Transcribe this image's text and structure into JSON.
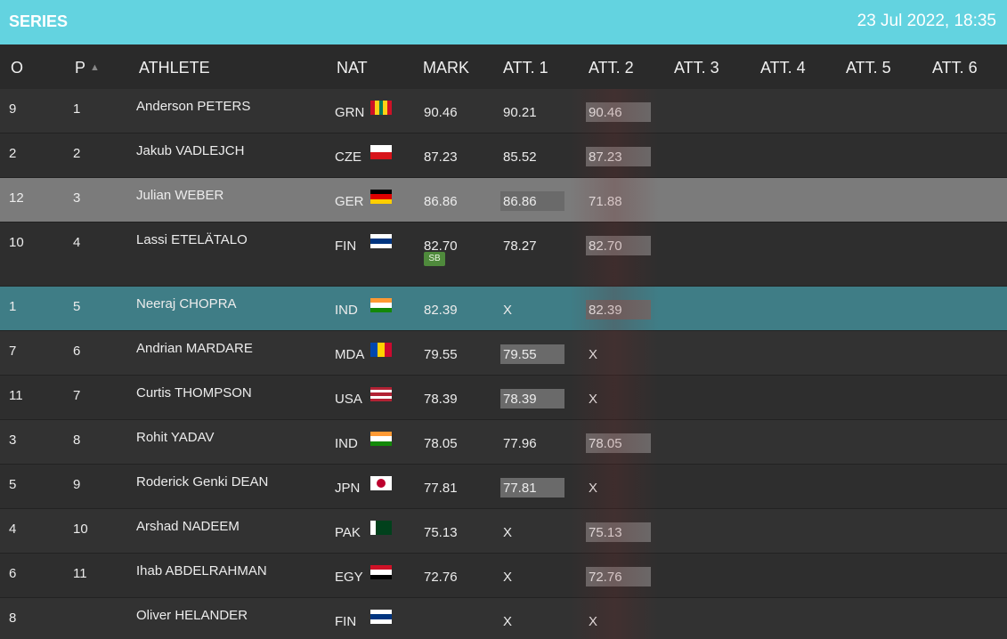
{
  "header": {
    "title": "SERIES",
    "datetime": "23 Jul 2022, 18:35"
  },
  "table": {
    "columns": [
      "O",
      "P",
      "ATHLETE",
      "NAT",
      "MARK",
      "ATT. 1",
      "ATT. 2",
      "ATT. 3",
      "ATT. 4",
      "ATT. 5",
      "ATT. 6"
    ],
    "rows": [
      {
        "o": "9",
        "p": "1",
        "athlete": "Anderson PETERS",
        "nat": "GRN",
        "mark": "90.46",
        "attempts": [
          "90.21",
          "90.46"
        ]
      },
      {
        "o": "2",
        "p": "2",
        "athlete": "Jakub VADLEJCH",
        "nat": "CZE",
        "mark": "87.23",
        "attempts": [
          "85.52",
          "87.23"
        ]
      },
      {
        "o": "12",
        "p": "3",
        "athlete": "Julian WEBER",
        "nat": "GER",
        "mark": "86.86",
        "attempts": [
          "86.86",
          "71.88"
        ]
      },
      {
        "o": "10",
        "p": "4",
        "athlete": "Lassi ETELÄTALO",
        "nat": "FIN",
        "mark": "82.70",
        "badge": "SB",
        "attempts": [
          "78.27",
          "82.70"
        ]
      },
      {
        "o": "1",
        "p": "5",
        "athlete": "Neeraj CHOPRA",
        "nat": "IND",
        "mark": "82.39",
        "attempts": [
          "X",
          "82.39"
        ]
      },
      {
        "o": "7",
        "p": "6",
        "athlete": "Andrian MARDARE",
        "nat": "MDA",
        "mark": "79.55",
        "attempts": [
          "79.55",
          "X"
        ]
      },
      {
        "o": "11",
        "p": "7",
        "athlete": "Curtis THOMPSON",
        "nat": "USA",
        "mark": "78.39",
        "attempts": [
          "78.39",
          "X"
        ]
      },
      {
        "o": "3",
        "p": "8",
        "athlete": "Rohit YADAV",
        "nat": "IND",
        "mark": "78.05",
        "attempts": [
          "77.96",
          "78.05"
        ]
      },
      {
        "o": "5",
        "p": "9",
        "athlete": "Roderick Genki DEAN",
        "nat": "JPN",
        "mark": "77.81",
        "attempts": [
          "77.81",
          "X"
        ]
      },
      {
        "o": "4",
        "p": "10",
        "athlete": "Arshad NADEEM",
        "nat": "PAK",
        "mark": "75.13",
        "attempts": [
          "X",
          "75.13"
        ]
      },
      {
        "o": "6",
        "p": "11",
        "athlete": "Ihab ABDELRAHMAN",
        "nat": "EGY",
        "mark": "72.76",
        "attempts": [
          "X",
          "72.76"
        ]
      },
      {
        "o": "8",
        "athlete": "Oliver HELANDER",
        "nat": "FIN",
        "attempts": [
          "X",
          "X"
        ]
      }
    ]
  }
}
